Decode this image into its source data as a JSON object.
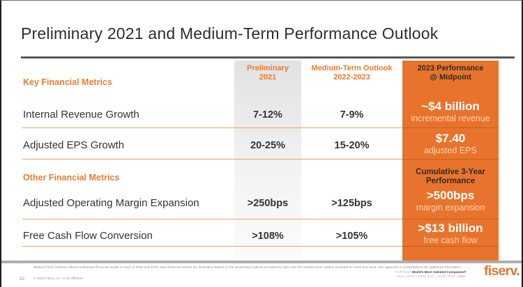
{
  "slide": {
    "title": "Preliminary 2021 and Medium-Term Performance Outlook",
    "page_number": "22",
    "copyright": "© 2020 Fiserv, Inc. or its affiliates.",
    "footnote": "Medium-Term Outlook reflects anticipated financial results in each of 2022 and 2023; 2023 financial metrics are illustrative based on the preliminary outlook provided for 2021 and the medium-term outlook provided for 2022 and 2023. See appendix to presentations for additional information.",
    "logo_text": "fiserv.",
    "fortune": {
      "brand": "FORTUNE",
      "award": "World's Most Admired Companies®",
      "years_prefix": "2014  |  2015  |  2016  |  2017  |  2018  |  2019  |  ",
      "highlight_year": "2020"
    }
  },
  "table": {
    "columns": {
      "preliminary": {
        "line1": "Preliminary",
        "line2": "2021"
      },
      "outlook": {
        "line1": "Medium-Term Outlook",
        "line2": "2022-2023"
      },
      "highlight": {
        "line1": "2023 Performance",
        "line2": "@ Midpoint"
      }
    },
    "sections": {
      "key": "Key Financial Metrics",
      "other": "Other Financial Metrics",
      "cumulative_line1": "Cumulative 3-Year",
      "cumulative_line2": "Performance"
    },
    "rows": [
      {
        "label": "Internal Revenue Growth",
        "preliminary": "7-12%",
        "outlook": "7-9%",
        "highlight_value": "~$4 billion",
        "highlight_sub": "incremental revenue"
      },
      {
        "label": "Adjusted EPS Growth",
        "preliminary": "20-25%",
        "outlook": "15-20%",
        "highlight_value": "$7.40",
        "highlight_sub": "adjusted EPS"
      },
      {
        "label": "Adjusted Operating Margin Expansion",
        "preliminary": ">250bps",
        "outlook": ">125bps",
        "highlight_value": ">500bps",
        "highlight_sub": "margin expansion"
      },
      {
        "label": "Free Cash Flow Conversion",
        "preliminary": ">108%",
        "outlook": ">105%",
        "highlight_value": ">$13 billion",
        "highlight_sub": "free cash flow"
      }
    ]
  },
  "colors": {
    "accent_orange": "#E8732C",
    "orange_text": "#EB7C2E",
    "dark_text": "#2E2E2E",
    "divider_light": "#F09C63",
    "divider_dark": "#C35F1D",
    "column_gray": "#E2E2E2"
  },
  "chart_data": {
    "type": "table",
    "title": "Preliminary 2021 and Medium-Term Performance Outlook",
    "columns": [
      "Metric",
      "Preliminary 2021",
      "Medium-Term Outlook 2022-2023",
      "2023 Performance @ Midpoint"
    ],
    "rows": [
      [
        "Internal Revenue Growth",
        "7-12%",
        "7-9%",
        "~$4 billion incremental revenue"
      ],
      [
        "Adjusted EPS Growth",
        "20-25%",
        "15-20%",
        "$7.40 adjusted EPS"
      ],
      [
        "Adjusted Operating Margin Expansion",
        ">250bps",
        ">125bps",
        ">500bps margin expansion (cumulative 3-year)"
      ],
      [
        "Free Cash Flow Conversion",
        ">108%",
        ">105%",
        ">$13 billion free cash flow (cumulative 3-year)"
      ]
    ]
  }
}
